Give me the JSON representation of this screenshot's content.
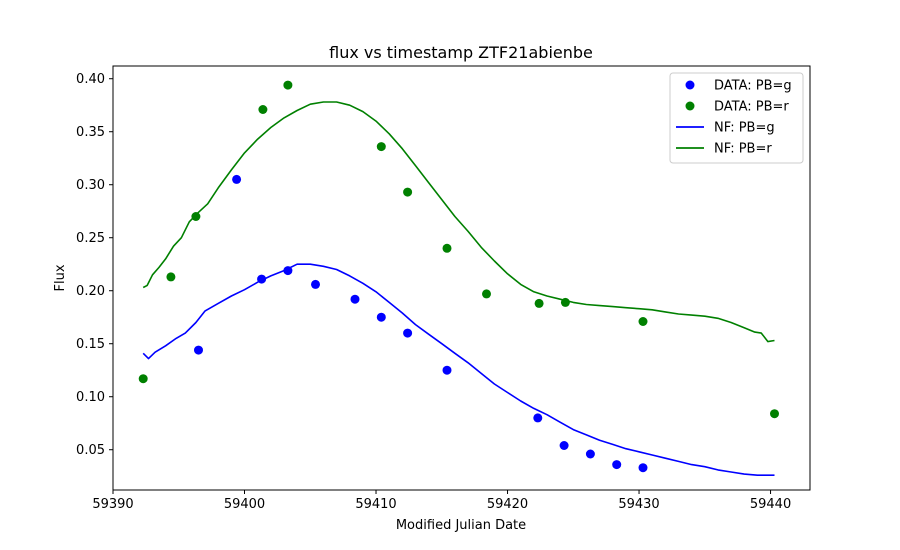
{
  "chart_data": {
    "type": "scatter",
    "title": "flux vs timestamp ZTF21abienbe",
    "xlabel": "Modified Julian Date",
    "ylabel": "Flux",
    "xlim": [
      59390,
      59443
    ],
    "ylim": [
      0.012,
      0.412
    ],
    "x_ticks": [
      59390,
      59400,
      59410,
      59420,
      59430,
      59440
    ],
    "y_ticks": [
      0.05,
      0.1,
      0.15,
      0.2,
      0.25,
      0.3,
      0.35,
      0.4
    ],
    "legend_position": "top-right",
    "grid": false,
    "series": [
      {
        "name": "DATA: PB=g",
        "kind": "scatter",
        "color": "#0000ff",
        "x": [
          59396.5,
          59399.4,
          59401.3,
          59403.3,
          59405.4,
          59408.4,
          59410.4,
          59412.4,
          59415.4,
          59422.3,
          59424.3,
          59426.3,
          59428.3,
          59430.3
        ],
        "y": [
          0.144,
          0.305,
          0.211,
          0.219,
          0.206,
          0.192,
          0.175,
          0.16,
          0.125,
          0.08,
          0.054,
          0.046,
          0.036,
          0.033
        ]
      },
      {
        "name": "DATA: PB=r",
        "kind": "scatter",
        "color": "#008000",
        "x": [
          59392.3,
          59394.4,
          59396.3,
          59401.4,
          59403.3,
          59410.4,
          59412.4,
          59415.4,
          59418.4,
          59422.4,
          59424.4,
          59430.3,
          59440.3
        ],
        "y": [
          0.117,
          0.213,
          0.27,
          0.371,
          0.394,
          0.336,
          0.293,
          0.24,
          0.197,
          0.188,
          0.189,
          0.171,
          0.084
        ]
      },
      {
        "name": "NF: PB=g",
        "kind": "line",
        "color": "#0000ff",
        "x": [
          59392.3,
          59392.7,
          59393.2,
          59394.0,
          59394.8,
          59395.5,
          59396.3,
          59397.0,
          59398.0,
          59399.0,
          59400.0,
          59401.0,
          59402.0,
          59403.0,
          59404.0,
          59405.0,
          59406.0,
          59407.0,
          59408.0,
          59409.0,
          59410.0,
          59411.0,
          59412.0,
          59413.0,
          59414.0,
          59415.0,
          59416.0,
          59417.0,
          59418.0,
          59419.0,
          59420.0,
          59421.0,
          59422.0,
          59423.0,
          59424.0,
          59425.0,
          59426.0,
          59427.0,
          59428.0,
          59429.0,
          59430.0,
          59431.0,
          59432.0,
          59433.0,
          59434.0,
          59435.0,
          59436.0,
          59437.0,
          59438.0,
          59439.0,
          59440.3
        ],
        "y": [
          0.141,
          0.136,
          0.142,
          0.148,
          0.155,
          0.16,
          0.17,
          0.181,
          0.188,
          0.195,
          0.201,
          0.208,
          0.214,
          0.219,
          0.225,
          0.225,
          0.223,
          0.22,
          0.214,
          0.207,
          0.199,
          0.189,
          0.179,
          0.168,
          0.159,
          0.15,
          0.141,
          0.132,
          0.122,
          0.112,
          0.104,
          0.096,
          0.089,
          0.083,
          0.076,
          0.069,
          0.064,
          0.059,
          0.055,
          0.051,
          0.048,
          0.045,
          0.042,
          0.039,
          0.036,
          0.034,
          0.031,
          0.029,
          0.027,
          0.026,
          0.026
        ]
      },
      {
        "name": "NF: PB=r",
        "kind": "line",
        "color": "#008000",
        "x": [
          59392.3,
          59392.6,
          59393.0,
          59393.5,
          59394.0,
          59394.6,
          59395.2,
          59395.8,
          59396.5,
          59397.2,
          59398.0,
          59399.0,
          59400.0,
          59401.0,
          59402.0,
          59403.0,
          59404.0,
          59405.0,
          59406.0,
          59407.0,
          59408.0,
          59409.0,
          59410.0,
          59411.0,
          59412.0,
          59413.0,
          59414.0,
          59415.0,
          59416.0,
          59417.0,
          59418.0,
          59419.0,
          59420.0,
          59421.0,
          59422.0,
          59423.0,
          59424.0,
          59425.0,
          59426.0,
          59427.0,
          59428.0,
          59429.0,
          59430.0,
          59431.0,
          59432.0,
          59433.0,
          59434.0,
          59435.0,
          59436.0,
          59437.0,
          59438.0,
          59438.8,
          59439.3,
          59439.8,
          59440.3
        ],
        "y": [
          0.203,
          0.205,
          0.215,
          0.222,
          0.23,
          0.242,
          0.25,
          0.265,
          0.274,
          0.282,
          0.297,
          0.314,
          0.33,
          0.343,
          0.354,
          0.363,
          0.37,
          0.376,
          0.378,
          0.378,
          0.375,
          0.369,
          0.36,
          0.348,
          0.334,
          0.318,
          0.302,
          0.286,
          0.27,
          0.256,
          0.241,
          0.228,
          0.216,
          0.206,
          0.199,
          0.195,
          0.192,
          0.189,
          0.187,
          0.186,
          0.185,
          0.184,
          0.183,
          0.182,
          0.18,
          0.178,
          0.177,
          0.176,
          0.174,
          0.17,
          0.165,
          0.161,
          0.16,
          0.152,
          0.153
        ]
      }
    ]
  }
}
